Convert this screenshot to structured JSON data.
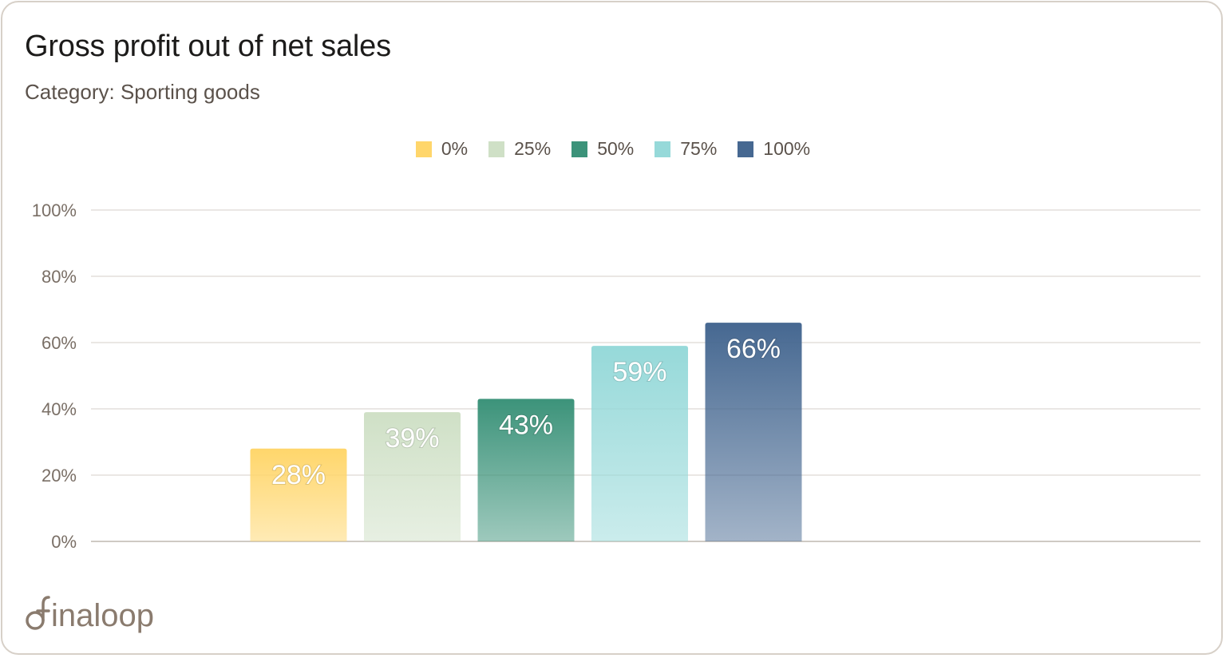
{
  "title": "Gross profit out of net sales",
  "subtitle": "Category: Sporting goods",
  "logo_text": "inaloop",
  "chart_data": {
    "type": "bar",
    "title": "Gross profit out of net sales",
    "subtitle": "Category: Sporting goods",
    "categories": [
      "0%",
      "25%",
      "50%",
      "75%",
      "100%"
    ],
    "values": [
      28,
      39,
      43,
      59,
      66
    ],
    "value_labels": [
      "28%",
      "39%",
      "43%",
      "59%",
      "66%"
    ],
    "colors": [
      "#ffd66b",
      "#cfe0c6",
      "#3c937a",
      "#96d9d9",
      "#466891"
    ],
    "ylim": [
      0,
      100
    ],
    "yticks": [
      "0%",
      "20%",
      "40%",
      "60%",
      "80%",
      "100%"
    ],
    "ytick_values": [
      0,
      20,
      40,
      60,
      80,
      100
    ],
    "grid": true,
    "legend": "top-center",
    "xlabel": "",
    "ylabel": ""
  }
}
